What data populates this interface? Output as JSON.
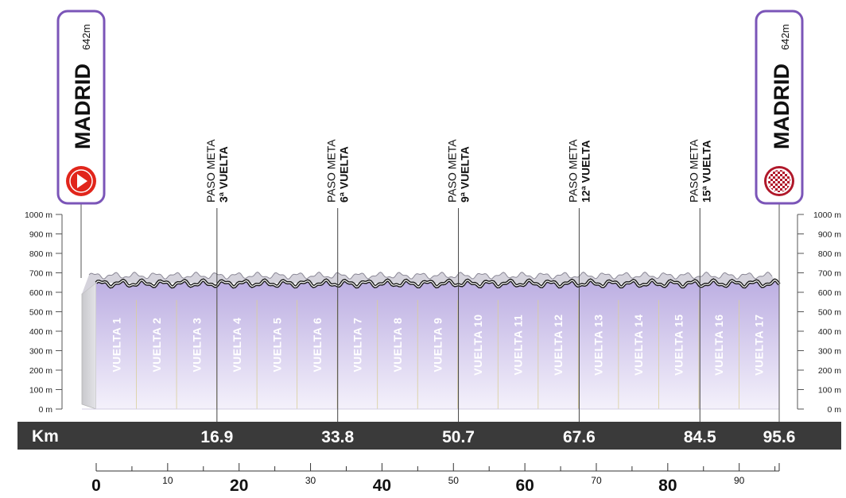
{
  "chart_data": {
    "type": "area",
    "title": "",
    "xlabel": "",
    "ylabel": "",
    "start": {
      "name": "MADRID",
      "altitude": "642m",
      "icon": "start-play-icon"
    },
    "finish": {
      "name": "MADRID",
      "altitude": "642m",
      "icon": "finish-checkered-flag-icon"
    },
    "y_ticks": [
      "0 m",
      "100 m",
      "200 m",
      "300 m",
      "400 m",
      "500 m",
      "600 m",
      "700 m",
      "800 m",
      "900 m",
      "1000 m"
    ],
    "ylim": [
      0,
      1000
    ],
    "xlim": [
      0,
      95.6
    ],
    "km_label": "Km",
    "x_axis_major": [
      "0",
      "20",
      "40",
      "60",
      "80"
    ],
    "x_axis_minor": [
      "10",
      "30",
      "50",
      "70",
      "90"
    ],
    "markers": [
      {
        "km": 16.9,
        "km_label": "16.9",
        "line1": "PASO META",
        "line2": "3ª VUELTA"
      },
      {
        "km": 33.8,
        "km_label": "33.8",
        "line1": "PASO META",
        "line2": "6ª VUELTA"
      },
      {
        "km": 50.7,
        "km_label": "50.7",
        "line1": "PASO META",
        "line2": "9ª VUELTA"
      },
      {
        "km": 67.6,
        "km_label": "67.6",
        "line1": "PASO META",
        "line2": "12ª VUELTA"
      },
      {
        "km": 84.5,
        "km_label": "84.5",
        "line1": "PASO META",
        "line2": "15ª VUELTA"
      }
    ],
    "finish_km_label": "95.6",
    "laps": [
      "VUELTA 1",
      "VUELTA 2",
      "VUELTA 3",
      "VUELTA 4",
      "VUELTA 5",
      "VUELTA 6",
      "VUELTA 7",
      "VUELTA 8",
      "VUELTA 9",
      "VUELTA 10",
      "VUELTA 11",
      "VUELTA 12",
      "VUELTA 13",
      "VUELTA 14",
      "VUELTA 15",
      "VUELTA 16",
      "VUELTA 17"
    ],
    "colors": {
      "accent": "#7b55b8",
      "fill_top": "#bfb0e2",
      "fill_bottom": "#f3f0fa",
      "km_bar": "#3a3a3a",
      "start_red": "#e1251b"
    }
  }
}
